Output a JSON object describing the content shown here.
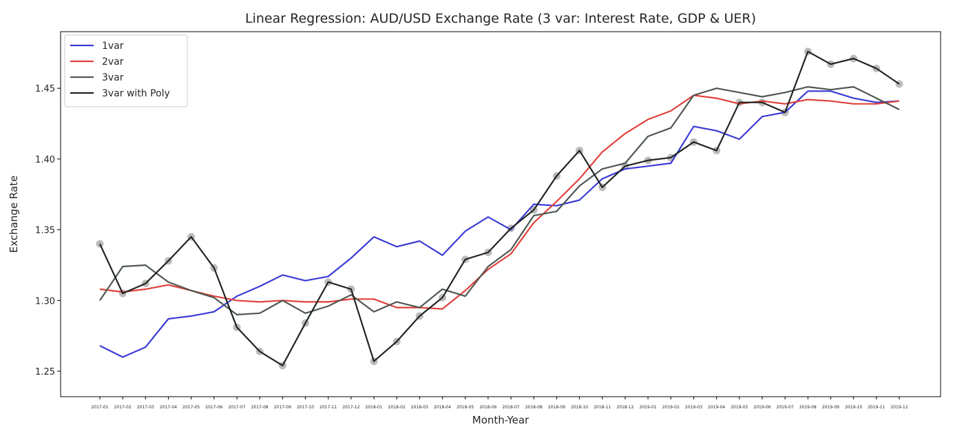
{
  "chart_data": {
    "type": "line",
    "title": "Linear Regression: AUD/USD Exchange Rate (3 var: Interest Rate, GDP & UER)",
    "xlabel": "Month-Year",
    "ylabel": "Exchange Rate",
    "ylim": [
      1.232,
      1.49
    ],
    "yticks": [
      1.25,
      1.3,
      1.35,
      1.4,
      1.45
    ],
    "ytick_labels": [
      "1.25",
      "1.30",
      "1.35",
      "1.40",
      "1.45"
    ],
    "grid": false,
    "legend_position": "top-left",
    "categories": [
      "2017-01",
      "2017-02",
      "2017-03",
      "2017-04",
      "2017-05",
      "2017-06",
      "2017-07",
      "2017-08",
      "2017-09",
      "2017-10",
      "2017-11",
      "2017-12",
      "2018-01",
      "2018-02",
      "2018-03",
      "2018-04",
      "2018-05",
      "2018-06",
      "2018-07",
      "2018-08",
      "2018-09",
      "2018-10",
      "2018-11",
      "2018-12",
      "2019-01",
      "2019-02",
      "2019-03",
      "2019-04",
      "2019-05",
      "2019-06",
      "2019-07",
      "2019-08",
      "2019-09",
      "2019-10",
      "2019-11",
      "2019-12"
    ],
    "actual": [
      1.34,
      1.305,
      1.312,
      1.328,
      1.345,
      1.323,
      1.281,
      1.264,
      1.254,
      1.284,
      1.313,
      1.308,
      1.257,
      1.271,
      1.289,
      1.302,
      1.329,
      1.334,
      1.351,
      1.364,
      1.388,
      1.406,
      1.38,
      1.395,
      1.399,
      1.401,
      1.412,
      1.406,
      1.44,
      1.44,
      1.433,
      1.476,
      1.467,
      1.471,
      1.464,
      1.453
    ],
    "series": [
      {
        "name": "1var",
        "color": "#3a3ad6",
        "values": [
          1.268,
          1.26,
          1.267,
          1.287,
          1.289,
          1.292,
          1.303,
          1.31,
          1.318,
          1.314,
          1.317,
          1.33,
          1.345,
          1.338,
          1.342,
          1.332,
          1.349,
          1.359,
          1.35,
          1.368,
          1.367,
          1.371,
          1.386,
          1.393,
          1.395,
          1.397,
          1.423,
          1.42,
          1.414,
          1.43,
          1.433,
          1.448,
          1.448,
          1.443,
          1.44,
          1.441
        ]
      },
      {
        "name": "2var",
        "color": "#e0403a",
        "values": [
          1.308,
          1.306,
          1.308,
          1.311,
          1.307,
          1.303,
          1.3,
          1.299,
          1.3,
          1.299,
          1.299,
          1.301,
          1.301,
          1.295,
          1.295,
          1.294,
          1.307,
          1.322,
          1.333,
          1.355,
          1.37,
          1.386,
          1.405,
          1.418,
          1.428,
          1.434,
          1.445,
          1.443,
          1.439,
          1.441,
          1.439,
          1.442,
          1.441,
          1.439,
          1.439,
          1.441
        ]
      },
      {
        "name": "3var",
        "color": "#4d5750",
        "values": [
          1.3,
          1.324,
          1.325,
          1.313,
          1.307,
          1.302,
          1.29,
          1.291,
          1.3,
          1.291,
          1.296,
          1.304,
          1.292,
          1.299,
          1.295,
          1.308,
          1.303,
          1.324,
          1.336,
          1.36,
          1.363,
          1.381,
          1.393,
          1.397,
          1.416,
          1.422,
          1.445,
          1.45,
          1.447,
          1.444,
          1.447,
          1.451,
          1.449,
          1.451,
          1.443,
          1.435
        ]
      },
      {
        "name": "3var with Poly",
        "color": "#1f2420",
        "values": [
          1.34,
          1.305,
          1.312,
          1.328,
          1.345,
          1.323,
          1.281,
          1.264,
          1.254,
          1.284,
          1.313,
          1.308,
          1.257,
          1.271,
          1.289,
          1.302,
          1.329,
          1.334,
          1.351,
          1.364,
          1.388,
          1.406,
          1.38,
          1.395,
          1.399,
          1.401,
          1.412,
          1.406,
          1.44,
          1.44,
          1.433,
          1.476,
          1.467,
          1.471,
          1.464,
          1.453
        ]
      }
    ]
  }
}
